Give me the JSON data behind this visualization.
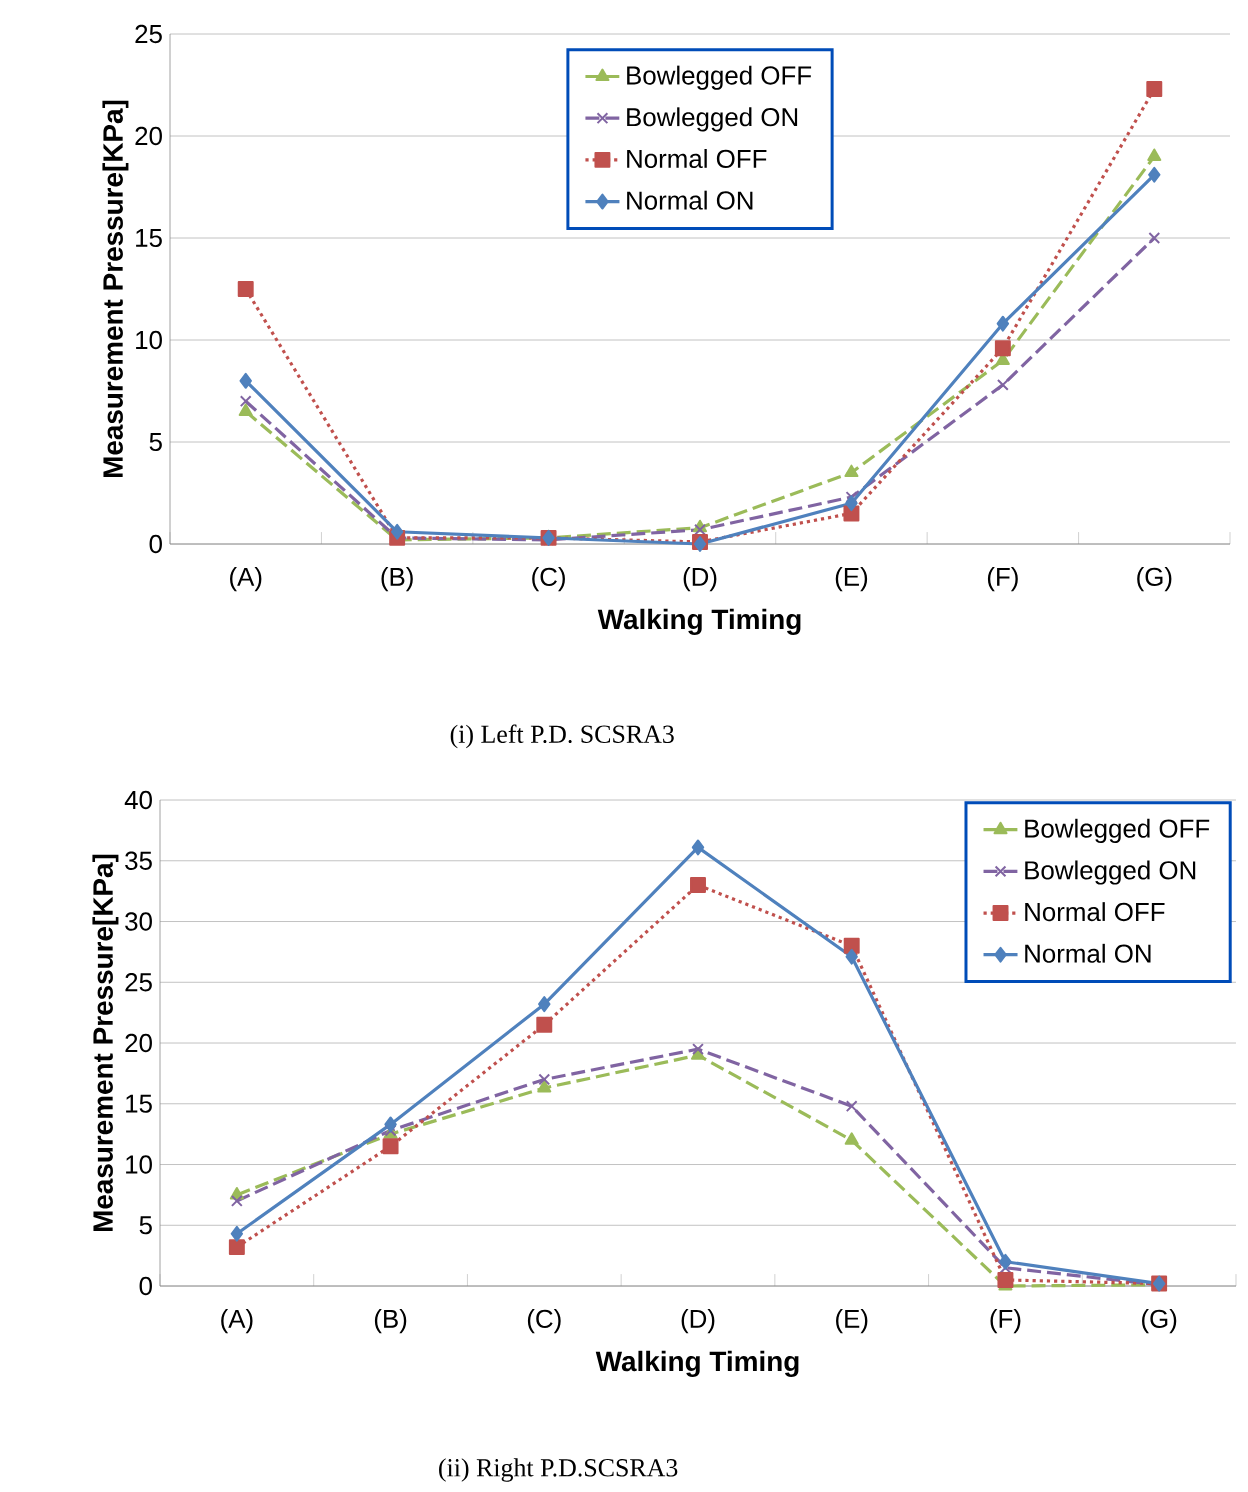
{
  "chart_data": [
    {
      "type": "line",
      "xlabel": "Walking Timing",
      "ylabel": "Measurement Pressure[KPa]",
      "categories": [
        "(A)",
        "(B)",
        "(C)",
        "(D)",
        "(E)",
        "(F)",
        "(G)"
      ],
      "series": [
        {
          "name": "Bowlegged OFF",
          "color": "#9bbb59",
          "marker": "triangle",
          "line_style": "dashed",
          "values": [
            6.5,
            0.2,
            0.3,
            0.8,
            3.5,
            9,
            19
          ]
        },
        {
          "name": "Bowlegged ON",
          "color": "#8064a2",
          "marker": "cross",
          "line_style": "dashed",
          "values": [
            7,
            0.3,
            0.2,
            0.7,
            2.3,
            7.8,
            15
          ]
        },
        {
          "name": "Normal OFF",
          "color": "#c0504d",
          "marker": "square",
          "line_style": "dotted",
          "values": [
            12.5,
            0.3,
            0.3,
            0.1,
            1.5,
            9.6,
            22.3
          ]
        },
        {
          "name": "Normal ON",
          "color": "#4f81bd",
          "marker": "diamond",
          "line_style": "solid",
          "values": [
            8,
            0.6,
            0.3,
            0,
            2,
            10.8,
            18.1
          ]
        }
      ],
      "ylim": [
        0,
        25
      ],
      "yticks": [
        0,
        5,
        10,
        15,
        20,
        25
      ],
      "grid": "y",
      "legend": "top",
      "annotations": [
        "(i)      Left P.D. SCSRA3"
      ]
    },
    {
      "type": "line",
      "xlabel": "Walking Timing",
      "ylabel": "Measurement Pressure[KPa]",
      "categories": [
        "(A)",
        "(B)",
        "(C)",
        "(D)",
        "(E)",
        "(F)",
        "(G)"
      ],
      "series": [
        {
          "name": "Bowlegged OFF",
          "color": "#9bbb59",
          "marker": "triangle",
          "line_style": "dashed",
          "values": [
            7.5,
            12.5,
            16.3,
            19,
            12,
            0,
            0.1
          ]
        },
        {
          "name": "Bowlegged ON",
          "color": "#8064a2",
          "marker": "cross",
          "line_style": "dashed",
          "values": [
            7,
            12.8,
            17,
            19.5,
            14.8,
            1.5,
            0.1
          ]
        },
        {
          "name": "Normal OFF",
          "color": "#c0504d",
          "marker": "square",
          "line_style": "dotted",
          "values": [
            3.2,
            11.5,
            21.5,
            33,
            28,
            0.5,
            0.2
          ]
        },
        {
          "name": "Normal ON",
          "color": "#4f81bd",
          "marker": "diamond",
          "line_style": "solid",
          "values": [
            4.3,
            13.3,
            23.2,
            36.1,
            27.1,
            2,
            0.2
          ]
        }
      ],
      "ylim": [
        0,
        40
      ],
      "yticks": [
        0,
        5,
        10,
        15,
        20,
        25,
        30,
        35,
        40
      ],
      "grid": "y",
      "legend": "top right",
      "annotations": [
        "(ii) Right P.D.SCSRA3"
      ]
    }
  ]
}
